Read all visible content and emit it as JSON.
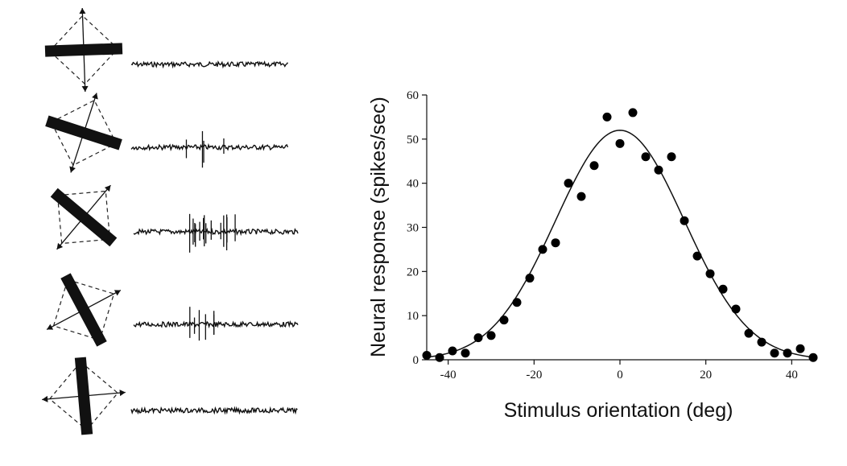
{
  "stimuli": [
    {
      "bar_angle_deg": -2,
      "spike_count": 0
    },
    {
      "bar_angle_deg": 18,
      "spike_count": 4
    },
    {
      "bar_angle_deg": 40,
      "spike_count": 14
    },
    {
      "bar_angle_deg": 62,
      "spike_count": 6
    },
    {
      "bar_angle_deg": 85,
      "spike_count": 0
    }
  ],
  "chart_data": {
    "type": "scatter",
    "xlabel": "Stimulus orientation (deg)",
    "ylabel": "Neural response (spikes/sec)",
    "xlim": [
      -45,
      45
    ],
    "ylim": [
      0,
      60
    ],
    "xticks": [
      -40,
      -20,
      0,
      20,
      40
    ],
    "yticks": [
      0,
      10,
      20,
      30,
      40,
      50,
      60
    ],
    "points": {
      "x": [
        -45,
        -42,
        -39,
        -36,
        -33,
        -30,
        -27,
        -24,
        -21,
        -18,
        -15,
        -12,
        -9,
        -6,
        -3,
        0,
        3,
        6,
        9,
        12,
        15,
        18,
        21,
        24,
        27,
        30,
        33,
        36,
        39,
        42,
        45
      ],
      "y": [
        1,
        0.5,
        2,
        1.5,
        5,
        5.5,
        9,
        13,
        18.5,
        25,
        26.5,
        40,
        37,
        44,
        55,
        49,
        56,
        46,
        43,
        46,
        31.5,
        23.5,
        19.5,
        16,
        11.5,
        6,
        4,
        1.5,
        1.5,
        2.5,
        0.5
      ]
    },
    "fit": {
      "type": "gaussian",
      "peak": 52,
      "center": 0,
      "sigma": 15,
      "baseline": 0
    },
    "grid": false,
    "legend": "none"
  }
}
